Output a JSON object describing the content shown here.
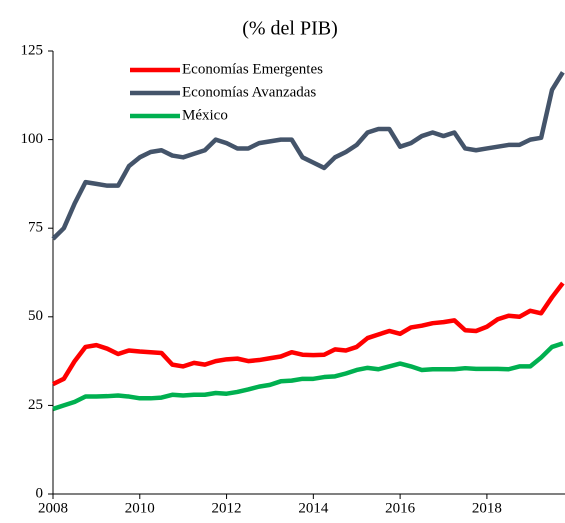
{
  "chart_data": {
    "type": "line",
    "title": "(% del PIB)",
    "x": [
      2008,
      2008.25,
      2008.5,
      2008.75,
      2009,
      2009.25,
      2009.5,
      2009.75,
      2010,
      2010.25,
      2010.5,
      2010.75,
      2011,
      2011.25,
      2011.5,
      2011.75,
      2012,
      2012.25,
      2012.5,
      2012.75,
      2013,
      2013.25,
      2013.5,
      2013.75,
      2014,
      2014.25,
      2014.5,
      2014.75,
      2015,
      2015.25,
      2015.5,
      2015.75,
      2016,
      2016.25,
      2016.5,
      2016.75,
      2017,
      2017.25,
      2017.5,
      2017.75,
      2018,
      2018.25,
      2018.5,
      2018.75,
      2019,
      2019.25,
      2019.5,
      2019.75
    ],
    "series": [
      {
        "name": "Economías Emergentes",
        "color": "#ff0000",
        "values": [
          31,
          32.5,
          37.5,
          41.5,
          42,
          41,
          39.5,
          40.5,
          40.2,
          40,
          39.8,
          36.5,
          36,
          37,
          36.5,
          37.5,
          38,
          38.2,
          37.5,
          37.8,
          38.3,
          38.8,
          40,
          39.3,
          39.2,
          39.3,
          40.8,
          40.5,
          41.5,
          44,
          45,
          46,
          45.2,
          47,
          47.5,
          48.2,
          48.5,
          49,
          46.2,
          46,
          47.2,
          49.3,
          50.3,
          50,
          51.7,
          51,
          55.5,
          59.5
        ]
      },
      {
        "name": "Economías Avanzadas",
        "color": "#44546a",
        "values": [
          72,
          75,
          82,
          88,
          87.5,
          87,
          87,
          92.5,
          95,
          96.5,
          97,
          95.5,
          95,
          96,
          97,
          100,
          99,
          97.5,
          97.5,
          99,
          99.5,
          100,
          100,
          95,
          93.5,
          92,
          95,
          96.5,
          98.5,
          102,
          103,
          103,
          98,
          99,
          101,
          102,
          101,
          102,
          97.5,
          97,
          97.5,
          98,
          98.5,
          98.5,
          100,
          100.5,
          114,
          119
        ]
      },
      {
        "name": "México",
        "color": "#00b050",
        "values": [
          24,
          25,
          26,
          27.5,
          27.5,
          27.6,
          27.8,
          27.5,
          27,
          27,
          27.2,
          28,
          27.8,
          28,
          28,
          28.5,
          28.3,
          28.8,
          29.5,
          30.3,
          30.8,
          31.8,
          32,
          32.5,
          32.5,
          33,
          33.2,
          34,
          35,
          35.6,
          35.2,
          36,
          36.8,
          36,
          35,
          35.2,
          35.2,
          35.2,
          35.5,
          35.3,
          35.3,
          35.3,
          35.2,
          36,
          36,
          38.5,
          41.5,
          42.5
        ]
      }
    ],
    "xlim": [
      2008,
      2019.8
    ],
    "xticks": [
      2008,
      2010,
      2012,
      2014,
      2016,
      2018
    ],
    "ylim": [
      0,
      125
    ],
    "yticks": [
      0,
      25,
      50,
      75,
      100,
      125
    ]
  }
}
